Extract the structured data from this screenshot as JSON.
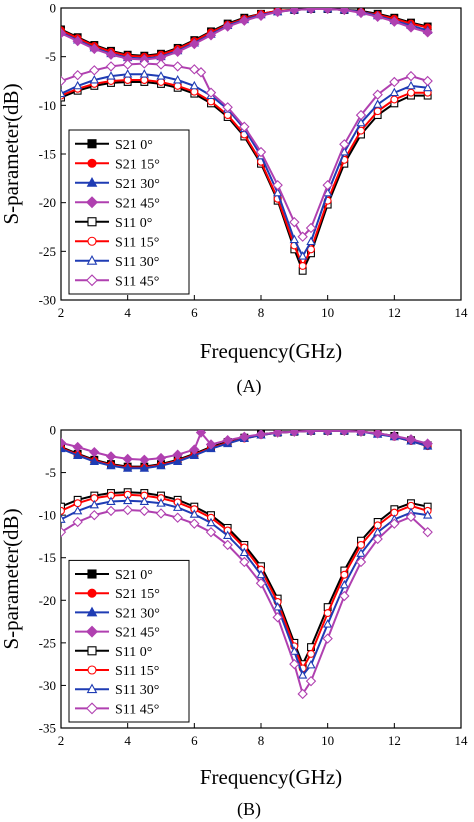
{
  "chart_data": [
    {
      "type": "line",
      "panel_label": "(A)",
      "xlabel": "Frequency(GHz)",
      "ylabel": "S-parameter(dB)",
      "xlim": [
        2,
        14
      ],
      "ylim": [
        -30,
        0
      ],
      "xticks": [
        2,
        4,
        6,
        8,
        10,
        12,
        14
      ],
      "yticks": [
        0,
        -5,
        -10,
        -15,
        -20,
        -25,
        -30
      ],
      "grid": false,
      "legend_position": "bottom-left",
      "series": [
        {
          "name": "S21 0°",
          "color": "#000000",
          "marker": "square",
          "fill": true,
          "x": [
            2,
            2.5,
            3,
            3.5,
            4,
            4.5,
            5,
            5.5,
            6,
            6.5,
            7,
            7.5,
            8,
            8.5,
            9,
            9.5,
            10,
            10.5,
            11,
            11.5,
            12,
            12.5,
            13
          ],
          "y": [
            -2.2,
            -3.0,
            -3.8,
            -4.4,
            -4.8,
            -4.9,
            -4.7,
            -4.1,
            -3.3,
            -2.4,
            -1.6,
            -1.0,
            -0.6,
            -0.3,
            -0.2,
            -0.1,
            -0.1,
            -0.2,
            -0.3,
            -0.6,
            -1.0,
            -1.5,
            -1.9
          ]
        },
        {
          "name": "S21 15°",
          "color": "#ff0000",
          "marker": "circle",
          "fill": true,
          "x": [
            2,
            2.5,
            3,
            3.5,
            4,
            4.5,
            5,
            5.5,
            6,
            6.5,
            7,
            7.5,
            8,
            8.5,
            9,
            9.5,
            10,
            10.5,
            11,
            11.5,
            12,
            12.5,
            13
          ],
          "y": [
            -2.3,
            -3.1,
            -3.9,
            -4.5,
            -4.9,
            -5.0,
            -4.8,
            -4.2,
            -3.4,
            -2.5,
            -1.7,
            -1.1,
            -0.6,
            -0.3,
            -0.2,
            -0.1,
            -0.1,
            -0.2,
            -0.4,
            -0.7,
            -1.1,
            -1.6,
            -2.0
          ]
        },
        {
          "name": "S21 30°",
          "color": "#1f3cb4",
          "marker": "triangle",
          "fill": true,
          "x": [
            2,
            2.5,
            3,
            3.5,
            4,
            4.5,
            5,
            5.5,
            6,
            6.5,
            7,
            7.5,
            8,
            8.5,
            9,
            9.5,
            10,
            10.5,
            11,
            11.5,
            12,
            12.5,
            13
          ],
          "y": [
            -2.5,
            -3.3,
            -4.1,
            -4.7,
            -5.1,
            -5.2,
            -5.0,
            -4.4,
            -3.6,
            -2.7,
            -1.8,
            -1.2,
            -0.7,
            -0.4,
            -0.2,
            -0.1,
            -0.1,
            -0.2,
            -0.4,
            -0.8,
            -1.3,
            -1.8,
            -2.3
          ]
        },
        {
          "name": "S21 45°",
          "color": "#b040b0",
          "marker": "diamond",
          "fill": true,
          "x": [
            2,
            2.5,
            3,
            3.5,
            4,
            4.5,
            5,
            5.5,
            6,
            6.5,
            7,
            7.5,
            8,
            8.5,
            9,
            9.5,
            10,
            10.5,
            11,
            11.5,
            12,
            12.5,
            13
          ],
          "y": [
            -2.6,
            -3.4,
            -4.2,
            -4.8,
            -5.2,
            -5.3,
            -5.1,
            -4.5,
            -3.7,
            -2.8,
            -1.9,
            -1.3,
            -0.8,
            -0.4,
            -0.2,
            -0.1,
            -0.1,
            -0.2,
            -0.5,
            -0.9,
            -1.4,
            -2.0,
            -2.5
          ]
        },
        {
          "name": "S11 0°",
          "color": "#000000",
          "marker": "square",
          "fill": false,
          "x": [
            2,
            2.5,
            3,
            3.5,
            4,
            4.5,
            5,
            5.5,
            6,
            6.5,
            7,
            7.5,
            8,
            8.5,
            9,
            9.25,
            9.5,
            10,
            10.5,
            11,
            11.5,
            12,
            12.5,
            13
          ],
          "y": [
            -9.2,
            -8.5,
            -8.0,
            -7.7,
            -7.6,
            -7.6,
            -7.8,
            -8.2,
            -8.8,
            -9.8,
            -11.2,
            -13.2,
            -16.0,
            -19.8,
            -24.8,
            -27.0,
            -25.2,
            -20.2,
            -16.0,
            -13.0,
            -11.0,
            -9.8,
            -9.0,
            -9.0
          ]
        },
        {
          "name": "S11 15°",
          "color": "#ff0000",
          "marker": "circle",
          "fill": false,
          "x": [
            2,
            2.5,
            3,
            3.5,
            4,
            4.5,
            5,
            5.5,
            6,
            6.5,
            7,
            7.5,
            8,
            8.5,
            9,
            9.25,
            9.5,
            10,
            10.5,
            11,
            11.5,
            12,
            12.5,
            13
          ],
          "y": [
            -9.0,
            -8.3,
            -7.8,
            -7.5,
            -7.4,
            -7.4,
            -7.6,
            -8.0,
            -8.6,
            -9.6,
            -11.0,
            -13.0,
            -15.8,
            -19.6,
            -24.4,
            -26.5,
            -24.8,
            -19.8,
            -15.6,
            -12.6,
            -10.6,
            -9.4,
            -8.7,
            -8.7
          ]
        },
        {
          "name": "S11 30°",
          "color": "#1f3cb4",
          "marker": "triangle",
          "fill": false,
          "x": [
            2,
            2.5,
            3,
            3.5,
            4,
            4.5,
            5,
            5.5,
            6,
            6.5,
            7,
            7.5,
            8,
            8.5,
            9,
            9.25,
            9.5,
            10,
            10.5,
            11,
            11.5,
            12,
            12.5,
            13
          ],
          "y": [
            -8.8,
            -8.0,
            -7.4,
            -7.0,
            -6.8,
            -6.8,
            -7.0,
            -7.4,
            -8.0,
            -9.0,
            -10.4,
            -12.4,
            -15.2,
            -19.0,
            -23.8,
            -25.5,
            -24.0,
            -19.0,
            -14.8,
            -11.8,
            -9.9,
            -8.7,
            -8.0,
            -8.2
          ]
        },
        {
          "name": "S11 45°",
          "color": "#b040b0",
          "marker": "diamond",
          "fill": false,
          "x": [
            2,
            2.5,
            3,
            3.5,
            4,
            4.5,
            5,
            5.5,
            6,
            6.2,
            6.5,
            7,
            7.5,
            8,
            8.5,
            9,
            9.25,
            9.5,
            10,
            10.5,
            11,
            11.5,
            12,
            12.5,
            13
          ],
          "y": [
            -7.5,
            -6.9,
            -6.4,
            -6.0,
            -5.8,
            -5.7,
            -5.8,
            -6.0,
            -6.3,
            -6.6,
            -8.7,
            -10.2,
            -12.2,
            -14.8,
            -18.2,
            -22.0,
            -23.5,
            -22.6,
            -18.2,
            -14.0,
            -11.0,
            -8.9,
            -7.6,
            -7.0,
            -7.5
          ]
        }
      ]
    },
    {
      "type": "line",
      "panel_label": "(B)",
      "xlabel": "Frequency(GHz)",
      "ylabel": "S-parameter(dB)",
      "xlim": [
        2,
        14
      ],
      "ylim": [
        -35,
        0
      ],
      "xticks": [
        2,
        4,
        6,
        8,
        10,
        12,
        14
      ],
      "yticks": [
        0,
        -5,
        -10,
        -15,
        -20,
        -25,
        -30,
        -35
      ],
      "grid": false,
      "legend_position": "bottom-left",
      "series": [
        {
          "name": "S21 0°",
          "color": "#000000",
          "marker": "square",
          "fill": true,
          "x": [
            2,
            2.5,
            3,
            3.5,
            4,
            4.5,
            5,
            5.5,
            6,
            6.5,
            7,
            7.5,
            8,
            8.5,
            9,
            9.5,
            10,
            10.5,
            11,
            11.5,
            12,
            12.5,
            13
          ],
          "y": [
            -2.0,
            -2.8,
            -3.5,
            -4.0,
            -4.3,
            -4.3,
            -4.0,
            -3.5,
            -2.8,
            -2.0,
            -1.4,
            -0.9,
            -0.5,
            -0.3,
            -0.2,
            -0.1,
            -0.1,
            -0.1,
            -0.2,
            -0.4,
            -0.7,
            -1.2,
            -1.8
          ]
        },
        {
          "name": "S21 15°",
          "color": "#ff0000",
          "marker": "circle",
          "fill": true,
          "x": [
            2,
            2.5,
            3,
            3.5,
            4,
            4.5,
            5,
            5.5,
            6,
            6.5,
            7,
            7.5,
            8,
            8.5,
            9,
            9.5,
            10,
            10.5,
            11,
            11.5,
            12,
            12.5,
            13
          ],
          "y": [
            -2.1,
            -2.9,
            -3.6,
            -4.1,
            -4.4,
            -4.4,
            -4.1,
            -3.6,
            -2.9,
            -2.1,
            -1.5,
            -1.0,
            -0.6,
            -0.3,
            -0.2,
            -0.1,
            -0.1,
            -0.1,
            -0.2,
            -0.4,
            -0.8,
            -1.3,
            -1.9
          ]
        },
        {
          "name": "S21 30°",
          "color": "#1f3cb4",
          "marker": "triangle",
          "fill": true,
          "x": [
            2,
            2.5,
            3,
            3.5,
            4,
            4.5,
            5,
            5.5,
            6,
            6.5,
            7,
            7.5,
            8,
            8.5,
            9,
            9.5,
            10,
            10.5,
            11,
            11.5,
            12,
            12.5,
            13
          ],
          "y": [
            -2.2,
            -3.0,
            -3.7,
            -4.2,
            -4.5,
            -4.5,
            -4.2,
            -3.7,
            -3.0,
            -2.2,
            -1.6,
            -1.0,
            -0.6,
            -0.3,
            -0.2,
            -0.1,
            -0.1,
            -0.1,
            -0.2,
            -0.5,
            -0.8,
            -1.3,
            -1.9
          ]
        },
        {
          "name": "S21 45°",
          "color": "#b040b0",
          "marker": "diamond",
          "fill": true,
          "x": [
            2,
            2.5,
            3,
            3.5,
            4,
            4.5,
            5,
            5.5,
            6,
            6.2,
            6.5,
            7,
            7.5,
            8,
            8.5,
            9,
            9.5,
            10,
            10.5,
            11,
            11.5,
            12,
            12.5,
            13
          ],
          "y": [
            -1.5,
            -2.0,
            -2.6,
            -3.1,
            -3.4,
            -3.5,
            -3.3,
            -2.9,
            -2.3,
            -0.3,
            -1.7,
            -1.2,
            -0.8,
            -0.5,
            -0.3,
            -0.2,
            -0.1,
            -0.1,
            -0.1,
            -0.2,
            -0.4,
            -0.7,
            -1.1,
            -1.6
          ]
        },
        {
          "name": "S11 0°",
          "color": "#000000",
          "marker": "square",
          "fill": false,
          "x": [
            2,
            2.5,
            3,
            3.5,
            4,
            4.5,
            5,
            5.5,
            6,
            6.5,
            7,
            7.5,
            8,
            8.5,
            9,
            9.25,
            9.5,
            10,
            10.5,
            11,
            11.5,
            12,
            12.5,
            13
          ],
          "y": [
            -9.0,
            -8.2,
            -7.7,
            -7.4,
            -7.3,
            -7.4,
            -7.7,
            -8.2,
            -9.0,
            -10.0,
            -11.5,
            -13.5,
            -16.0,
            -19.8,
            -25.0,
            -27.5,
            -25.5,
            -20.8,
            -16.5,
            -13.0,
            -10.8,
            -9.3,
            -8.6,
            -9.0
          ]
        },
        {
          "name": "S11 15°",
          "color": "#ff0000",
          "marker": "circle",
          "fill": false,
          "x": [
            2,
            2.5,
            3,
            3.5,
            4,
            4.5,
            5,
            5.5,
            6,
            6.5,
            7,
            7.5,
            8,
            8.5,
            9,
            9.25,
            9.5,
            10,
            10.5,
            11,
            11.5,
            12,
            12.5,
            13
          ],
          "y": [
            -9.5,
            -8.6,
            -8.0,
            -7.7,
            -7.6,
            -7.7,
            -8.0,
            -8.5,
            -9.3,
            -10.3,
            -11.8,
            -13.8,
            -16.4,
            -20.2,
            -25.4,
            -28.0,
            -26.3,
            -21.5,
            -17.0,
            -13.5,
            -11.2,
            -9.7,
            -8.9,
            -9.5
          ]
        },
        {
          "name": "S11 30°",
          "color": "#1f3cb4",
          "marker": "triangle",
          "fill": false,
          "x": [
            2,
            2.5,
            3,
            3.5,
            4,
            4.5,
            5,
            5.5,
            6,
            6.5,
            7,
            7.5,
            8,
            8.5,
            9,
            9.25,
            9.5,
            10,
            10.5,
            11,
            11.5,
            12,
            12.5,
            13
          ],
          "y": [
            -10.5,
            -9.5,
            -8.8,
            -8.4,
            -8.3,
            -8.4,
            -8.6,
            -9.1,
            -9.9,
            -10.9,
            -12.4,
            -14.4,
            -17.0,
            -20.8,
            -26.0,
            -28.8,
            -27.6,
            -22.8,
            -18.2,
            -14.5,
            -12.0,
            -10.5,
            -9.7,
            -10.0
          ]
        },
        {
          "name": "S11 45°",
          "color": "#b040b0",
          "marker": "diamond",
          "fill": false,
          "x": [
            2,
            2.5,
            3,
            3.5,
            4,
            4.5,
            5,
            5.5,
            6,
            6.5,
            7,
            7.5,
            8,
            8.5,
            9,
            9.25,
            9.5,
            10,
            10.5,
            11,
            11.5,
            12,
            12.5,
            13
          ],
          "y": [
            -12.0,
            -10.8,
            -10.0,
            -9.5,
            -9.4,
            -9.5,
            -9.8,
            -10.3,
            -11.0,
            -12.0,
            -13.5,
            -15.5,
            -18.0,
            -22.0,
            -27.5,
            -31.0,
            -29.5,
            -24.5,
            -19.5,
            -15.5,
            -12.8,
            -11.0,
            -10.2,
            -12.0
          ]
        }
      ]
    }
  ]
}
